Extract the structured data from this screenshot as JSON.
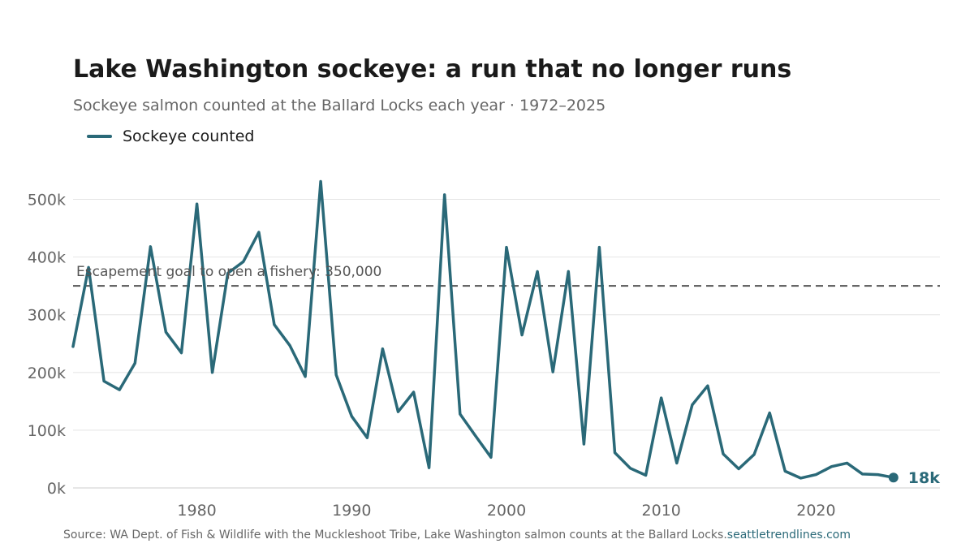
{
  "chart_data": {
    "type": "line",
    "title": "Lake Washington sockeye: a run that no longer runs",
    "subtitle": "Sockeye salmon counted at the Ballard Locks each year · 1972–2025",
    "xlabel": "",
    "ylabel": "",
    "xlim": [
      1972,
      2028
    ],
    "ylim": [
      0,
      550000
    ],
    "x_ticks": [
      1980,
      1990,
      2000,
      2010,
      2020
    ],
    "y_ticks": [
      {
        "value": 0,
        "label": "0k"
      },
      {
        "value": 100000,
        "label": "100k"
      },
      {
        "value": 200000,
        "label": "200k"
      },
      {
        "value": 300000,
        "label": "300k"
      },
      {
        "value": 400000,
        "label": "400k"
      },
      {
        "value": 500000,
        "label": "500k"
      }
    ],
    "grid": true,
    "legend_position": "top-left",
    "series": [
      {
        "name": "Sockeye counted",
        "color": "#2a6978",
        "x": [
          1972,
          1973,
          1974,
          1975,
          1976,
          1977,
          1978,
          1979,
          1980,
          1981,
          1982,
          1983,
          1984,
          1985,
          1986,
          1987,
          1988,
          1989,
          1990,
          1991,
          1992,
          1993,
          1994,
          1995,
          1996,
          1997,
          1998,
          1999,
          2000,
          2001,
          2002,
          2003,
          2004,
          2005,
          2006,
          2007,
          2008,
          2009,
          2010,
          2011,
          2012,
          2013,
          2014,
          2015,
          2016,
          2017,
          2018,
          2019,
          2020,
          2021,
          2022,
          2023,
          2024,
          2025
        ],
        "values": [
          245000,
          382000,
          185000,
          170000,
          216000,
          418000,
          270000,
          234000,
          492000,
          200000,
          372000,
          392000,
          443000,
          283000,
          247000,
          193000,
          531000,
          196000,
          124000,
          87000,
          241000,
          132000,
          166000,
          35000,
          508000,
          128000,
          90000,
          53000,
          417000,
          265000,
          375000,
          201000,
          375000,
          76000,
          417000,
          61000,
          34000,
          22000,
          156000,
          43000,
          144000,
          177000,
          59000,
          33000,
          58000,
          130000,
          29000,
          17000,
          23000,
          37000,
          43000,
          24000,
          23000,
          18000
        ]
      }
    ],
    "reference_line": {
      "value": 350000,
      "label": "Escapement goal to open a fishery: 350,000",
      "color": "#555555"
    },
    "end_label": {
      "text": "18k",
      "x": 2025,
      "value": 18000
    }
  },
  "source": "Source: WA Dept. of Fish & Wildlife with the Muckleshoot Tribe, Lake Washington salmon counts at the Ballard Locks.",
  "site": "seattletrendlines.com"
}
